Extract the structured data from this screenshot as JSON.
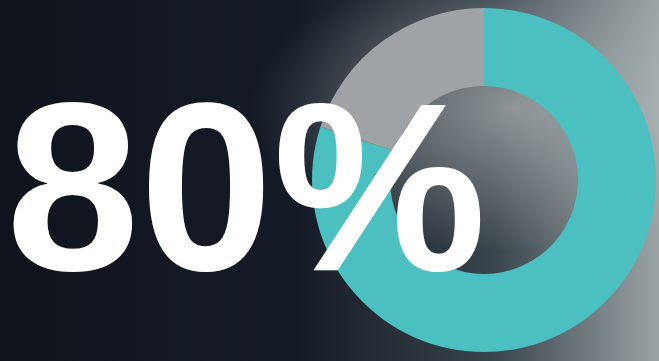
{
  "chart_data": {
    "type": "donut",
    "values": [
      80,
      20
    ],
    "value_labels": [
      "80%",
      null
    ],
    "colors": [
      "#4cc0c0",
      "#9fa2a6"
    ]
  }
}
